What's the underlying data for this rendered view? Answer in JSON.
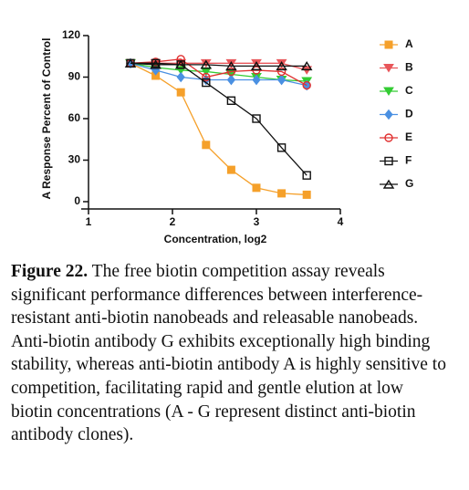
{
  "chart_data": {
    "type": "line",
    "y_label": "A Response Percent of Control",
    "x_label": "Concentration, log2",
    "x": [
      1.5,
      1.8,
      2.1,
      2.4,
      2.7,
      3.0,
      3.3,
      3.6
    ],
    "xlim": [
      1,
      4
    ],
    "xticks": [
      1,
      2,
      3,
      4
    ],
    "ylim": [
      0,
      120
    ],
    "yticks": [
      0,
      30,
      60,
      90,
      120
    ],
    "series": [
      {
        "name": "A",
        "color": "#f5a02a",
        "marker": "square-filled",
        "values": [
          100,
          91,
          79,
          41,
          23,
          10,
          6,
          5
        ]
      },
      {
        "name": "B",
        "color": "#e8565a",
        "marker": "triangle-down-filled",
        "values": [
          100,
          100,
          100,
          100,
          100,
          100,
          100,
          95
        ]
      },
      {
        "name": "C",
        "color": "#33cc33",
        "marker": "triangle-down-filled",
        "values": [
          100,
          97,
          95,
          94,
          92,
          90,
          88,
          87
        ]
      },
      {
        "name": "D",
        "color": "#4a90e2",
        "marker": "diamond-filled",
        "values": [
          100,
          95,
          90,
          88,
          88,
          88,
          88,
          84
        ]
      },
      {
        "name": "E",
        "color": "#e03030",
        "marker": "circle-open",
        "values": [
          100,
          101,
          103,
          90,
          94,
          95,
          94,
          84
        ]
      },
      {
        "name": "F",
        "color": "#111111",
        "marker": "square-open",
        "values": [
          100,
          100,
          99,
          86,
          73,
          60,
          39,
          19
        ]
      },
      {
        "name": "G",
        "color": "#111111",
        "marker": "triangle-up-open",
        "values": [
          100,
          99,
          99,
          99,
          98,
          98,
          98,
          98
        ]
      }
    ]
  },
  "caption": {
    "label": "Figure 22.",
    "text": "The free biotin competition assay reveals significant performance differences between interference-resistant anti-biotin nanobeads and releasable nanobeads. Anti-biotin antibody G exhibits exceptionally high binding stability, whereas anti-biotin antibody A is highly sensitive to competition, facilitating rapid and gentle elution at low biotin concentrations (A - G represent distinct anti-biotin antibody clones)."
  }
}
